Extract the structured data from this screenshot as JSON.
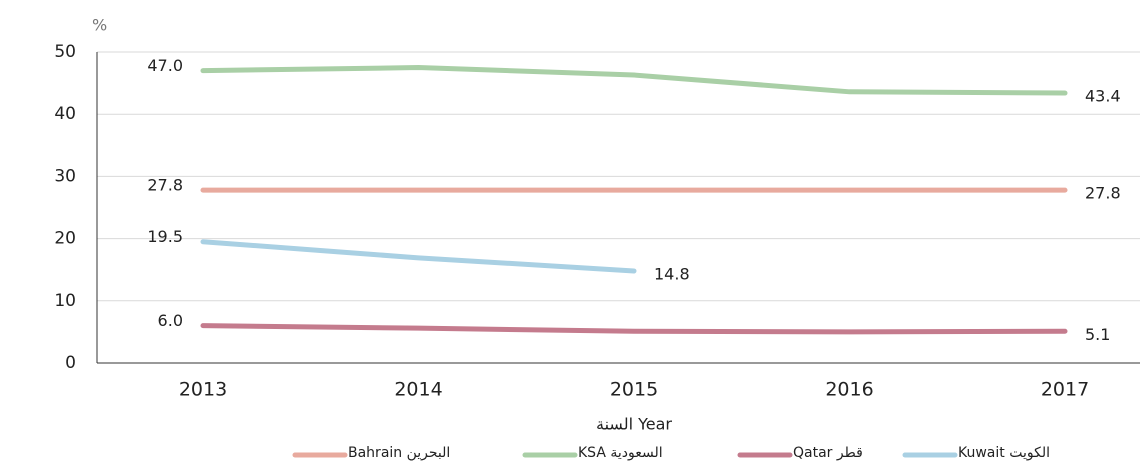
{
  "chart_data": {
    "type": "line",
    "y_unit": "%",
    "x_label": "السنة Year",
    "categories": [
      "2013",
      "2014",
      "2015",
      "2016",
      "2017"
    ],
    "ylim": [
      0,
      50
    ],
    "yticks": [
      0,
      10,
      20,
      30,
      40,
      50
    ],
    "grid": true,
    "series": [
      {
        "name": "Bahrain البحرين",
        "color": "#e8aa9e",
        "values": [
          27.8,
          27.8,
          27.8,
          27.8,
          27.8
        ],
        "value_labels": [
          "27.8",
          null,
          null,
          null,
          "27.8"
        ]
      },
      {
        "name": "KSA السعودية",
        "color": "#a9cfa6",
        "values": [
          47.0,
          47.5,
          46.3,
          43.6,
          43.4
        ],
        "value_labels": [
          "47.0",
          null,
          null,
          null,
          "43.4"
        ]
      },
      {
        "name": "Qatar قطر",
        "color": "#c47b8d",
        "values": [
          6.0,
          5.6,
          5.1,
          5.0,
          5.1
        ],
        "value_labels": [
          "6.0",
          null,
          null,
          null,
          "5.1"
        ]
      },
      {
        "name": "Kuwait الكويت",
        "color": "#a9d0e3",
        "values": [
          19.5,
          16.9,
          14.8,
          null,
          null
        ],
        "value_labels": [
          "19.5",
          null,
          "14.8",
          null,
          null
        ]
      }
    ]
  }
}
